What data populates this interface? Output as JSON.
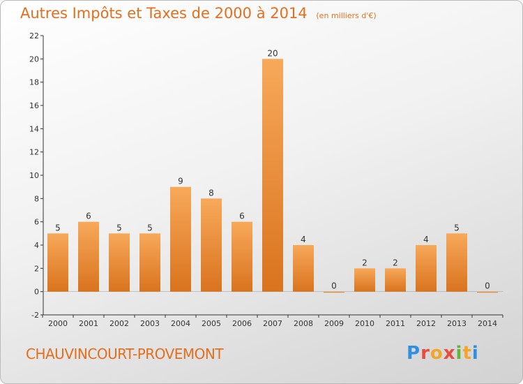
{
  "header": {
    "title": "Autres Impôts et Taxes de 2000 à 2014",
    "unit": "(en milliers d'€)"
  },
  "footer": {
    "commune": "CHAUVINCOURT-PROVEMONT",
    "brand": "Proxiti"
  },
  "colors": {
    "accent": "#e36f1e",
    "bar_top": "#f7a95a",
    "bar_bottom": "#d9731e"
  },
  "chart_data": {
    "type": "bar",
    "title": "Autres Impôts et Taxes de 2000 à 2014",
    "subtitle": "(en milliers d'€)",
    "xlabel": "",
    "ylabel": "",
    "categories": [
      "2000",
      "2001",
      "2002",
      "2003",
      "2004",
      "2005",
      "2006",
      "2007",
      "2008",
      "2009",
      "2010",
      "2011",
      "2012",
      "2013",
      "2014"
    ],
    "values": [
      5,
      6,
      5,
      5,
      9,
      8,
      6,
      20,
      4,
      0,
      2,
      2,
      4,
      5,
      0
    ],
    "ylim": [
      -2,
      22
    ],
    "yticks": [
      -2,
      0,
      2,
      4,
      6,
      8,
      10,
      12,
      14,
      16,
      18,
      20,
      22
    ],
    "grid": false,
    "legend": "none"
  }
}
